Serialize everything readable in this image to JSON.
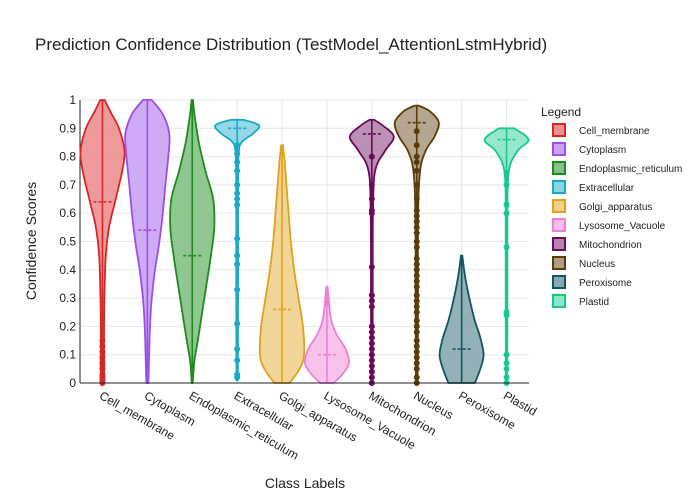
{
  "chart_data": {
    "type": "violin",
    "title": "Prediction Confidence Distribution (TestModel_AttentionLstmHybrid)",
    "xlabel": "Class Labels",
    "ylabel": "Confidence Scores",
    "ylim": [
      0,
      1
    ],
    "yticks": [
      0,
      0.1,
      0.2,
      0.3,
      0.4,
      0.5,
      0.6,
      0.7,
      0.8,
      0.9,
      1
    ],
    "ytick_labels": [
      "0",
      "0.1",
      "0.2",
      "0.3",
      "0.4",
      "0.5",
      "0.6",
      "0.7",
      "0.8",
      "0.9",
      "1"
    ],
    "grid": true,
    "legend": {
      "title": "Legend",
      "placement": "right"
    },
    "series": [
      {
        "name": "Cell_membrane",
        "color": "#d62728",
        "fill": "#ec8f90",
        "mean": 0.64,
        "range": [
          0,
          1
        ],
        "density": [
          [
            0,
            0.05
          ],
          [
            0.05,
            0.08
          ],
          [
            0.15,
            0.07
          ],
          [
            0.3,
            0.09
          ],
          [
            0.45,
            0.15
          ],
          [
            0.55,
            0.3
          ],
          [
            0.65,
            0.6
          ],
          [
            0.75,
            0.9
          ],
          [
            0.82,
            1.0
          ],
          [
            0.9,
            0.75
          ],
          [
            0.96,
            0.35
          ],
          [
            1,
            0.1
          ]
        ],
        "points": [
          0.0,
          0.01,
          0.02,
          0.03,
          0.05,
          0.07,
          0.09,
          0.11,
          0.13,
          0.15
        ]
      },
      {
        "name": "Cytoplasm",
        "color": "#9b4fe8",
        "fill": "#c9a2f3",
        "mean": 0.54,
        "range": [
          0,
          1
        ],
        "density": [
          [
            0,
            0.05
          ],
          [
            0.1,
            0.08
          ],
          [
            0.2,
            0.12
          ],
          [
            0.3,
            0.2
          ],
          [
            0.4,
            0.35
          ],
          [
            0.5,
            0.55
          ],
          [
            0.6,
            0.7
          ],
          [
            0.7,
            0.82
          ],
          [
            0.8,
            0.95
          ],
          [
            0.88,
            1.0
          ],
          [
            0.95,
            0.7
          ],
          [
            1,
            0.2
          ]
        ],
        "points": []
      },
      {
        "name": "Endoplasmic_reticulum",
        "color": "#1f8a1f",
        "fill": "#84c184",
        "mean": 0.45,
        "range": [
          0,
          1
        ],
        "density": [
          [
            0,
            0.02
          ],
          [
            0.08,
            0.1
          ],
          [
            0.15,
            0.25
          ],
          [
            0.25,
            0.45
          ],
          [
            0.35,
            0.65
          ],
          [
            0.45,
            0.85
          ],
          [
            0.55,
            1.0
          ],
          [
            0.65,
            0.95
          ],
          [
            0.75,
            0.6
          ],
          [
            0.85,
            0.3
          ],
          [
            0.95,
            0.1
          ],
          [
            1,
            0.03
          ]
        ],
        "points": []
      },
      {
        "name": "Extracellular",
        "color": "#17a9c9",
        "fill": "#8bd3e3",
        "mean": 0.9,
        "range": [
          0.01,
          0.93
        ],
        "density": [
          [
            0.01,
            0.03
          ],
          [
            0.3,
            0.04
          ],
          [
            0.6,
            0.04
          ],
          [
            0.8,
            0.06
          ],
          [
            0.85,
            0.2
          ],
          [
            0.88,
            0.7
          ],
          [
            0.91,
            1.0
          ],
          [
            0.93,
            0.3
          ]
        ],
        "points": [
          0.02,
          0.03,
          0.08,
          0.12,
          0.21,
          0.33,
          0.42,
          0.45,
          0.51,
          0.63,
          0.65,
          0.67,
          0.7,
          0.75,
          0.78,
          0.81,
          0.83,
          0.84
        ]
      },
      {
        "name": "Golgi_apparatus",
        "color": "#e0a11b",
        "fill": "#efd08d",
        "mean": 0.26,
        "range": [
          0,
          0.84
        ],
        "density": [
          [
            0,
            0.35
          ],
          [
            0.05,
            0.8
          ],
          [
            0.1,
            1.0
          ],
          [
            0.2,
            0.95
          ],
          [
            0.3,
            0.75
          ],
          [
            0.4,
            0.55
          ],
          [
            0.5,
            0.4
          ],
          [
            0.6,
            0.3
          ],
          [
            0.7,
            0.2
          ],
          [
            0.78,
            0.12
          ],
          [
            0.84,
            0.04
          ]
        ],
        "points": []
      },
      {
        "name": "Lysosome_Vacuole",
        "color": "#ef7fd2",
        "fill": "#f7bde8",
        "mean": 0.1,
        "range": [
          0,
          0.34
        ],
        "density": [
          [
            0,
            0.3
          ],
          [
            0.03,
            0.7
          ],
          [
            0.07,
            1.0
          ],
          [
            0.12,
            0.85
          ],
          [
            0.17,
            0.45
          ],
          [
            0.22,
            0.2
          ],
          [
            0.28,
            0.1
          ],
          [
            0.34,
            0.03
          ]
        ],
        "points": [
          0.28
        ]
      },
      {
        "name": "Mitochondrion",
        "color": "#6a0a5a",
        "fill": "#b484ac",
        "mean": 0.88,
        "range": [
          0,
          0.93
        ],
        "density": [
          [
            0,
            0.03
          ],
          [
            0.3,
            0.04
          ],
          [
            0.6,
            0.05
          ],
          [
            0.75,
            0.15
          ],
          [
            0.82,
            0.6
          ],
          [
            0.87,
            1.0
          ],
          [
            0.91,
            0.5
          ],
          [
            0.93,
            0.1
          ]
        ],
        "points": [
          0.0,
          0.02,
          0.04,
          0.06,
          0.08,
          0.1,
          0.12,
          0.14,
          0.16,
          0.18,
          0.2,
          0.27,
          0.29,
          0.31,
          0.41,
          0.6,
          0.61,
          0.65,
          0.7,
          0.8
        ]
      },
      {
        "name": "Nucleus",
        "color": "#5b3b07",
        "fill": "#ad9d83",
        "mean": 0.92,
        "range": [
          0,
          0.98
        ],
        "density": [
          [
            0,
            0.04
          ],
          [
            0.3,
            0.05
          ],
          [
            0.6,
            0.06
          ],
          [
            0.75,
            0.15
          ],
          [
            0.82,
            0.4
          ],
          [
            0.87,
            0.8
          ],
          [
            0.92,
            1.0
          ],
          [
            0.96,
            0.6
          ],
          [
            0.98,
            0.1
          ]
        ],
        "points": [
          0.0,
          0.02,
          0.05,
          0.07,
          0.09,
          0.11,
          0.13,
          0.15,
          0.18,
          0.2,
          0.22,
          0.25,
          0.27,
          0.29,
          0.31,
          0.34,
          0.36,
          0.38,
          0.4,
          0.42,
          0.44,
          0.48,
          0.5,
          0.53,
          0.55,
          0.57,
          0.59,
          0.61,
          0.65,
          0.7,
          0.75,
          0.78,
          0.8,
          0.84,
          0.89
        ]
      },
      {
        "name": "Peroxisome",
        "color": "#0f5660",
        "fill": "#87aab0",
        "mean": 0.12,
        "range": [
          0,
          0.45
        ],
        "density": [
          [
            0,
            0.6
          ],
          [
            0.05,
            0.85
          ],
          [
            0.1,
            1.0
          ],
          [
            0.16,
            0.85
          ],
          [
            0.22,
            0.6
          ],
          [
            0.3,
            0.35
          ],
          [
            0.38,
            0.15
          ],
          [
            0.45,
            0.03
          ]
        ],
        "points": []
      },
      {
        "name": "Plastid",
        "color": "#16c98a",
        "fill": "#8be6c5",
        "mean": 0.86,
        "range": [
          0,
          0.9
        ],
        "density": [
          [
            0,
            0.03
          ],
          [
            0.3,
            0.04
          ],
          [
            0.6,
            0.04
          ],
          [
            0.75,
            0.1
          ],
          [
            0.82,
            0.5
          ],
          [
            0.86,
            1.0
          ],
          [
            0.9,
            0.35
          ]
        ],
        "points": [
          0.0,
          0.02,
          0.05,
          0.07,
          0.1,
          0.24,
          0.25,
          0.48,
          0.6,
          0.63,
          0.7,
          0.74
        ]
      }
    ]
  }
}
